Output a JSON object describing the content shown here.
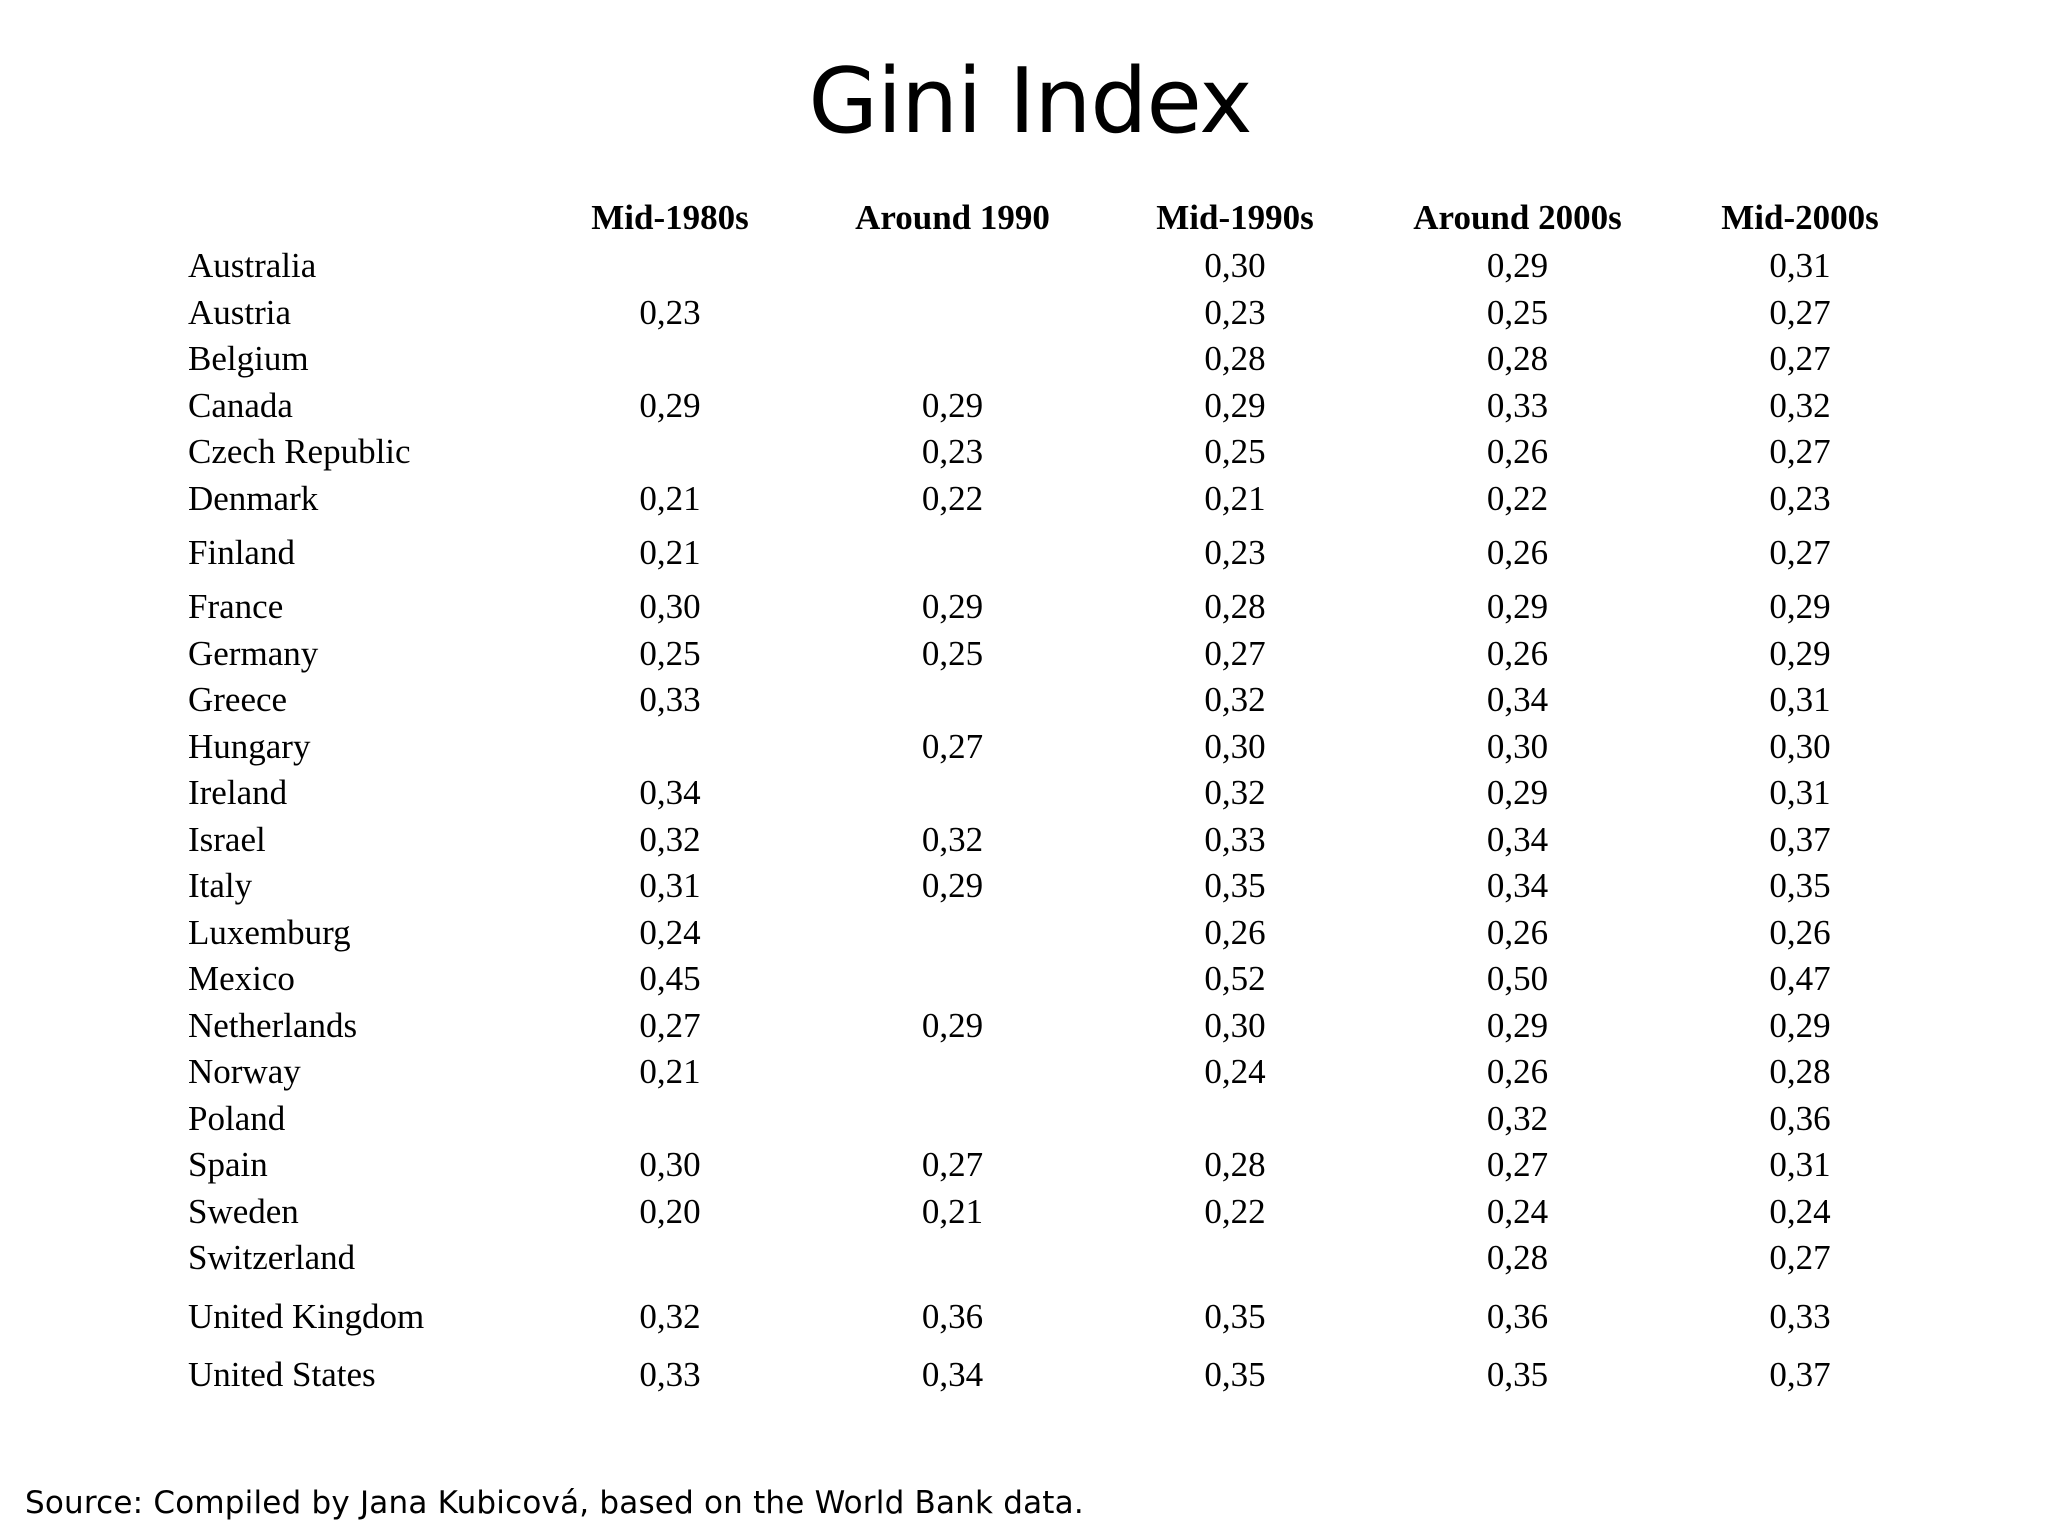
{
  "title": "Gini Index",
  "table": {
    "columns": [
      "",
      "Mid-1980s",
      "Around 1990",
      "Mid-1990s",
      "Around 2000s",
      "Mid-2000s"
    ],
    "rows": [
      {
        "country": "Australia",
        "values": [
          "",
          "",
          "0,30",
          "0,29",
          "0,31"
        ]
      },
      {
        "country": "Austria",
        "values": [
          "0,23",
          "",
          "0,23",
          "0,25",
          "0,27"
        ]
      },
      {
        "country": "Belgium",
        "values": [
          "",
          "",
          "0,28",
          "0,28",
          "0,27"
        ]
      },
      {
        "country": "Canada",
        "values": [
          "0,29",
          "0,29",
          "0,29",
          "0,33",
          "0,32"
        ]
      },
      {
        "country": "Czech Republic",
        "values": [
          "",
          "0,23",
          "0,25",
          "0,26",
          "0,27"
        ]
      },
      {
        "country": "Denmark",
        "values": [
          "0,21",
          "0,22",
          "0,21",
          "0,22",
          "0,23"
        ]
      },
      {
        "country": "Finland",
        "values": [
          "0,21",
          "",
          "0,23",
          "0,26",
          "0,27"
        ]
      },
      {
        "country": "France",
        "values": [
          "0,30",
          "0,29",
          "0,28",
          "0,29",
          "0,29"
        ]
      },
      {
        "country": "Germany",
        "values": [
          "0,25",
          "0,25",
          "0,27",
          "0,26",
          "0,29"
        ]
      },
      {
        "country": "Greece",
        "values": [
          "0,33",
          "",
          "0,32",
          "0,34",
          "0,31"
        ]
      },
      {
        "country": "Hungary",
        "values": [
          "",
          "0,27",
          "0,30",
          "0,30",
          "0,30"
        ]
      },
      {
        "country": "Ireland",
        "values": [
          "0,34",
          "",
          "0,32",
          "0,29",
          "0,31"
        ]
      },
      {
        "country": "Israel",
        "values": [
          "0,32",
          "0,32",
          "0,33",
          "0,34",
          "0,37"
        ]
      },
      {
        "country": "Italy",
        "values": [
          "0,31",
          "0,29",
          "0,35",
          "0,34",
          "0,35"
        ]
      },
      {
        "country": "Luxemburg",
        "values": [
          "0,24",
          "",
          "0,26",
          "0,26",
          "0,26"
        ]
      },
      {
        "country": "Mexico",
        "values": [
          "0,45",
          "",
          "0,52",
          "0,50",
          "0,47"
        ]
      },
      {
        "country": "Netherlands",
        "values": [
          "0,27",
          "0,29",
          "0,30",
          "0,29",
          "0,29"
        ]
      },
      {
        "country": "Norway",
        "values": [
          "0,21",
          "",
          "0,24",
          "0,26",
          "0,28"
        ]
      },
      {
        "country": "Poland",
        "values": [
          "",
          "",
          "",
          "0,32",
          "0,36"
        ]
      },
      {
        "country": "Spain",
        "values": [
          "0,30",
          "0,27",
          "0,28",
          "0,27",
          "0,31"
        ]
      },
      {
        "country": "Sweden",
        "values": [
          "0,20",
          "0,21",
          "0,22",
          "0,24",
          "0,24"
        ]
      },
      {
        "country": "Switzerland",
        "values": [
          "",
          "",
          "",
          "0,28",
          "0,27"
        ]
      },
      {
        "country": "United Kingdom",
        "values": [
          "0,32",
          "0,36",
          "0,35",
          "0,36",
          "0,33"
        ]
      },
      {
        "country": "United States",
        "values": [
          "0,33",
          "0,34",
          "0,35",
          "0,35",
          "0,37"
        ]
      }
    ]
  },
  "source": "Source: Compiled by Jana Kubicová, based on the World Bank data."
}
